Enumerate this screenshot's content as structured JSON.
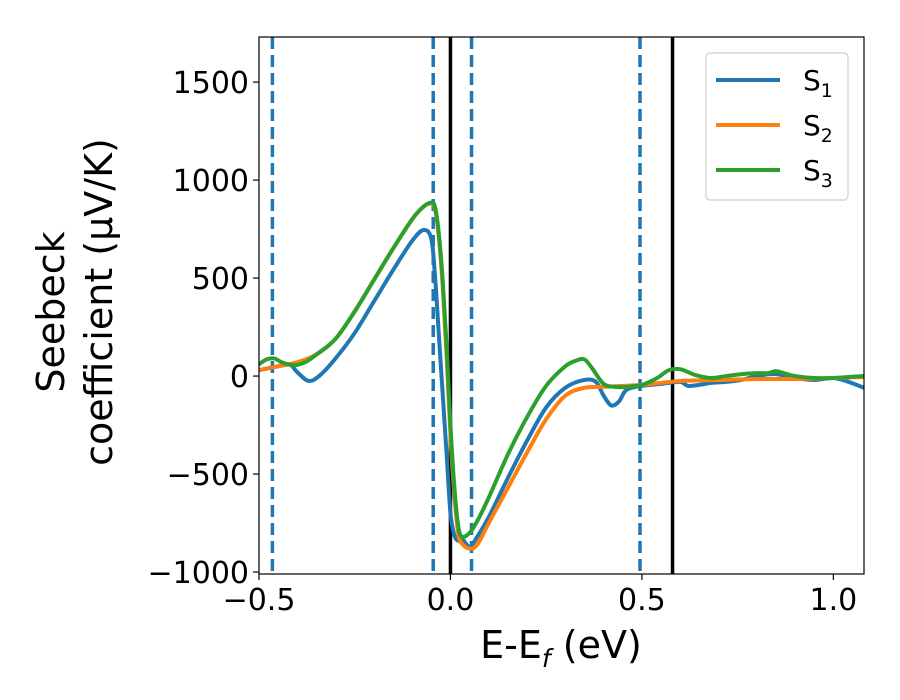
{
  "chart_data": {
    "type": "line",
    "xlabel": {
      "main": "E-E",
      "sub": "f",
      "unit": " (eV)"
    },
    "ylabel": {
      "line1": "Seebeck",
      "line2": "coefficient  (μV/K)"
    },
    "xlim": [
      -0.5,
      1.08
    ],
    "ylim": [
      -1010,
      1730
    ],
    "xticks": [
      {
        "value": -0.5,
        "label": "−0.5"
      },
      {
        "value": 0.0,
        "label": "0.0"
      },
      {
        "value": 0.5,
        "label": "0.5"
      },
      {
        "value": 1.0,
        "label": "1.0"
      }
    ],
    "yticks": [
      {
        "value": -1000,
        "label": "−1000"
      },
      {
        "value": -500,
        "label": "−500"
      },
      {
        "value": 0,
        "label": "0"
      },
      {
        "value": 500,
        "label": "500"
      },
      {
        "value": 1000,
        "label": "1000"
      },
      {
        "value": 1500,
        "label": "1500"
      }
    ],
    "grid": false,
    "legend_position": "top-right",
    "vlines_solid": [
      0.0,
      0.58
    ],
    "vlines_dashed": [
      -0.465,
      -0.045,
      0.055,
      0.495
    ],
    "vline_solid_color": "#000000",
    "vline_dashed_color": "#1f77b4",
    "series": [
      {
        "name": "S",
        "sub": "1",
        "color": "#1f77b4",
        "x": [
          -0.5,
          -0.45,
          -0.42,
          -0.4,
          -0.37,
          -0.34,
          -0.3,
          -0.25,
          -0.2,
          -0.15,
          -0.1,
          -0.07,
          -0.05,
          -0.04,
          -0.03,
          -0.02,
          -0.01,
          0.0,
          0.01,
          0.02,
          0.03,
          0.05,
          0.07,
          0.1,
          0.15,
          0.2,
          0.25,
          0.3,
          0.35,
          0.38,
          0.4,
          0.42,
          0.44,
          0.46,
          0.5,
          0.55,
          0.6,
          0.62,
          0.65,
          0.68,
          0.72,
          0.76,
          0.8,
          0.85,
          0.9,
          0.95,
          1.0,
          1.04,
          1.08
        ],
        "y": [
          30,
          50,
          60,
          20,
          -25,
          5,
          90,
          220,
          380,
          540,
          690,
          745,
          700,
          500,
          200,
          -100,
          -400,
          -700,
          -810,
          -840,
          -830,
          -870,
          -820,
          -720,
          -520,
          -330,
          -160,
          -60,
          -20,
          -30,
          -100,
          -150,
          -130,
          -70,
          -50,
          -40,
          -30,
          -50,
          -45,
          -35,
          -30,
          -20,
          0,
          10,
          -10,
          -20,
          -10,
          -30,
          -60
        ]
      },
      {
        "name": "S",
        "sub": "2",
        "color": "#ff7f0e",
        "x": [
          -0.5,
          -0.45,
          -0.4,
          -0.35,
          -0.3,
          -0.25,
          -0.2,
          -0.15,
          -0.1,
          -0.07,
          -0.05,
          -0.04,
          -0.03,
          -0.02,
          -0.01,
          0.0,
          0.01,
          0.02,
          0.03,
          0.05,
          0.07,
          0.1,
          0.15,
          0.2,
          0.25,
          0.3,
          0.35,
          0.4,
          0.45,
          0.5,
          0.55,
          0.6,
          0.7,
          0.8,
          0.9,
          1.0,
          1.08
        ],
        "y": [
          30,
          50,
          70,
          110,
          190,
          330,
          490,
          650,
          800,
          865,
          880,
          850,
          700,
          450,
          100,
          -300,
          -600,
          -800,
          -855,
          -880,
          -860,
          -750,
          -570,
          -390,
          -220,
          -100,
          -60,
          -55,
          -50,
          -45,
          -35,
          -25,
          -20,
          -15,
          -15,
          -10,
          -5
        ]
      },
      {
        "name": "S",
        "sub": "3",
        "color": "#2ca02c",
        "x": [
          -0.5,
          -0.48,
          -0.46,
          -0.44,
          -0.41,
          -0.38,
          -0.35,
          -0.3,
          -0.25,
          -0.2,
          -0.15,
          -0.1,
          -0.07,
          -0.05,
          -0.04,
          -0.03,
          -0.02,
          -0.01,
          0.0,
          0.01,
          0.02,
          0.03,
          0.05,
          0.07,
          0.1,
          0.15,
          0.2,
          0.25,
          0.3,
          0.33,
          0.35,
          0.37,
          0.4,
          0.43,
          0.46,
          0.5,
          0.54,
          0.57,
          0.6,
          0.64,
          0.68,
          0.72,
          0.76,
          0.8,
          0.83,
          0.85,
          0.87,
          0.9,
          0.95,
          1.0,
          1.04,
          1.08
        ],
        "y": [
          60,
          85,
          90,
          70,
          55,
          70,
          110,
          190,
          330,
          490,
          650,
          800,
          865,
          885,
          860,
          720,
          480,
          150,
          -250,
          -560,
          -760,
          -820,
          -800,
          -740,
          -620,
          -400,
          -210,
          -50,
          50,
          80,
          85,
          40,
          -40,
          -55,
          -55,
          -45,
          -10,
          30,
          35,
          5,
          -10,
          0,
          10,
          15,
          15,
          25,
          15,
          0,
          -10,
          -10,
          -5,
          0
        ]
      }
    ]
  }
}
